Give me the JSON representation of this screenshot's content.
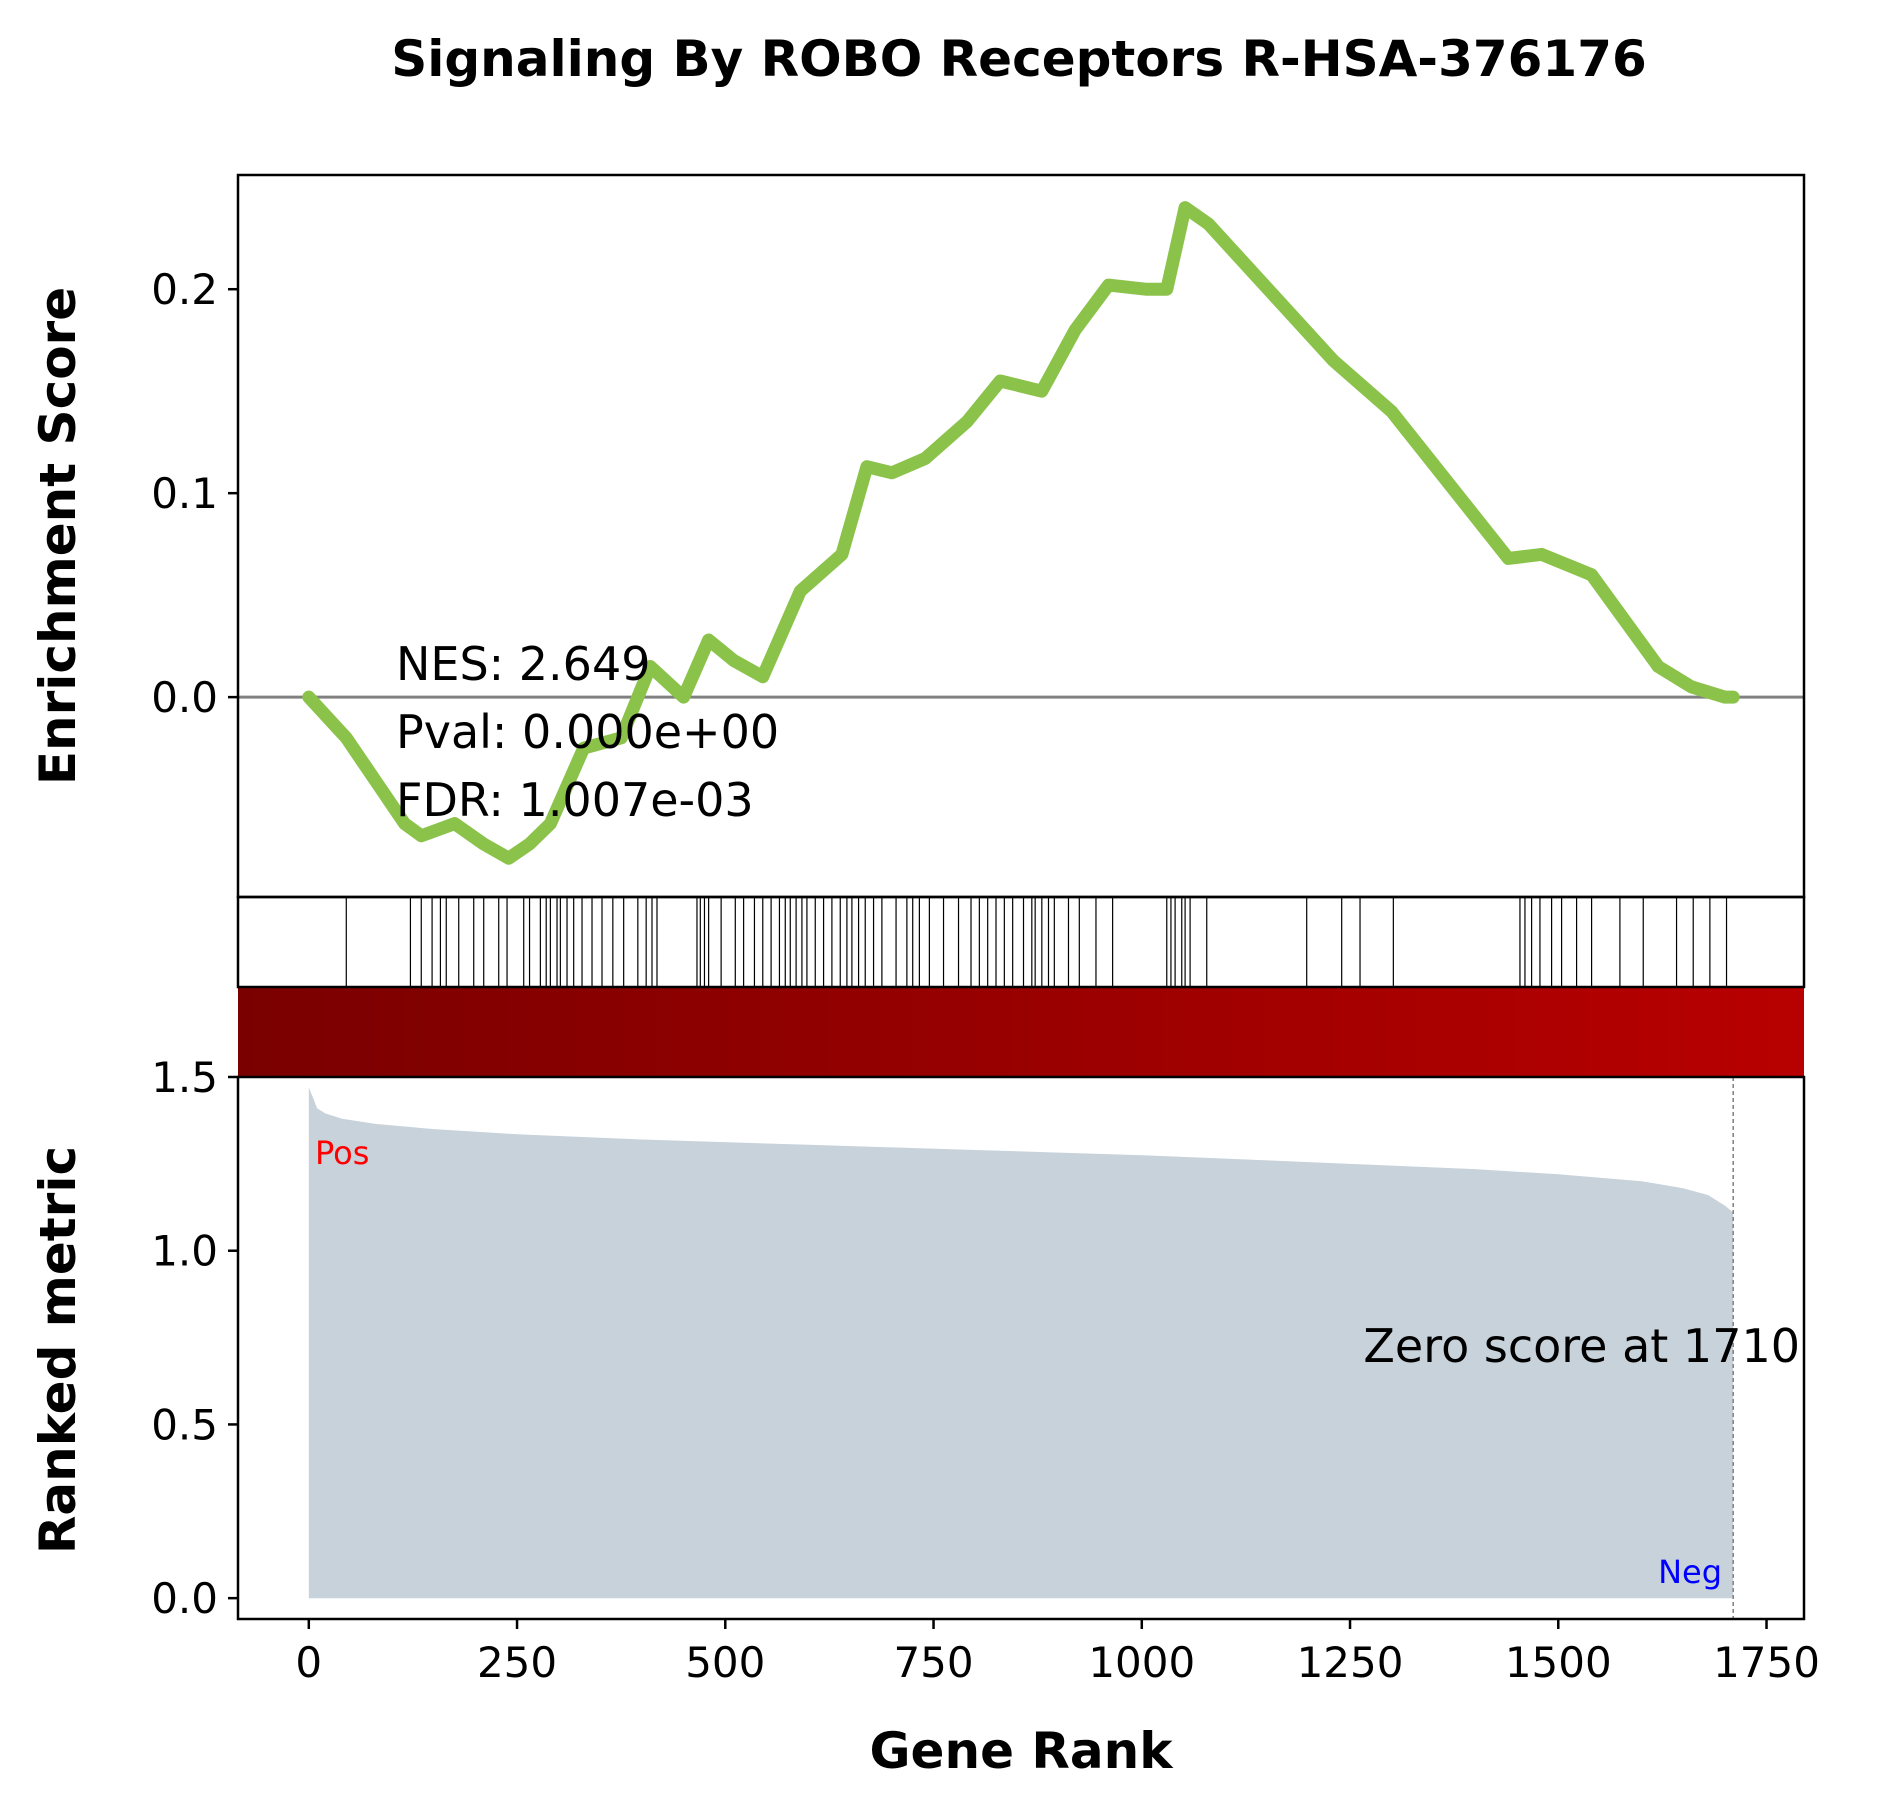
{
  "chart_data": {
    "type": "line",
    "title": "Signaling By ROBO Receptors R-HSA-376176",
    "xlabel": "Gene Rank",
    "ylabel_top": "Enrichment Score",
    "ylabel_bottom": "Ranked metric",
    "xlim": [
      -85,
      1795
    ],
    "xticks": [
      0,
      250,
      500,
      750,
      1000,
      1250,
      1500,
      1750
    ],
    "es_ylim": [
      -0.098,
      0.256
    ],
    "es_yticks": [
      0.0,
      0.1,
      0.2
    ],
    "metric_ylim": [
      -0.06,
      1.5
    ],
    "metric_yticks": [
      0.0,
      0.5,
      1.0,
      1.5
    ],
    "es_line_color": "#8bc34a",
    "zero_line_color": "#808080",
    "metric_fill_color": "#c8d2db",
    "heat_colors": [
      "#7a0000",
      "#b80000"
    ],
    "pos_label_color": "#ff0000",
    "neg_label_color": "#0000ff",
    "enrichment_curve": {
      "x": [
        0,
        45,
        115,
        135,
        175,
        210,
        240,
        265,
        290,
        330,
        375,
        410,
        450,
        480,
        510,
        545,
        590,
        640,
        670,
        700,
        740,
        790,
        830,
        880,
        920,
        960,
        1005,
        1030,
        1052,
        1080,
        1230,
        1300,
        1440,
        1480,
        1540,
        1620,
        1660,
        1700,
        1710
      ],
      "y": [
        0.0,
        -0.02,
        -0.062,
        -0.068,
        -0.062,
        -0.072,
        -0.079,
        -0.072,
        -0.062,
        -0.025,
        -0.02,
        0.015,
        0.0,
        0.028,
        0.018,
        0.01,
        0.052,
        0.07,
        0.113,
        0.11,
        0.117,
        0.135,
        0.155,
        0.15,
        0.18,
        0.202,
        0.2,
        0.2,
        0.24,
        0.232,
        0.165,
        0.14,
        0.068,
        0.07,
        0.06,
        0.015,
        0.005,
        0.0,
        0.0
      ]
    },
    "hit_positions": [
      45,
      122,
      135,
      148,
      158,
      165,
      180,
      198,
      210,
      228,
      238,
      258,
      265,
      278,
      285,
      290,
      298,
      302,
      310,
      318,
      328,
      340,
      352,
      365,
      378,
      395,
      405,
      412,
      418,
      466,
      470,
      475,
      480,
      495,
      512,
      522,
      535,
      545,
      555,
      565,
      572,
      578,
      585,
      592,
      598,
      608,
      618,
      628,
      638,
      646,
      652,
      660,
      668,
      678,
      688,
      705,
      718,
      725,
      733,
      745,
      762,
      780,
      795,
      805,
      815,
      825,
      835,
      845,
      858,
      868,
      872,
      880,
      888,
      895,
      912,
      925,
      945,
      965,
      1030,
      1035,
      1040,
      1048,
      1052,
      1058,
      1078,
      1198,
      1240,
      1262,
      1302,
      1454,
      1460,
      1468,
      1478,
      1492,
      1504,
      1522,
      1540,
      1574,
      1602,
      1642,
      1662,
      1682,
      1702
    ],
    "ranked_metric": {
      "x": [
        0,
        5,
        10,
        20,
        40,
        80,
        150,
        250,
        400,
        600,
        800,
        1000,
        1200,
        1400,
        1500,
        1600,
        1650,
        1680,
        1700,
        1710
      ],
      "y": [
        1.47,
        1.44,
        1.41,
        1.395,
        1.38,
        1.365,
        1.35,
        1.335,
        1.32,
        1.305,
        1.29,
        1.275,
        1.255,
        1.235,
        1.22,
        1.2,
        1.18,
        1.16,
        1.13,
        1.11
      ]
    },
    "zero_score_rank": 1710,
    "annotations": {
      "nes": "NES: 2.649",
      "pval": "Pval: 0.000e+00",
      "fdr": "FDR: 1.007e-03",
      "zero_score": "Zero score at 1710",
      "pos": "Pos",
      "neg": "Neg"
    }
  }
}
